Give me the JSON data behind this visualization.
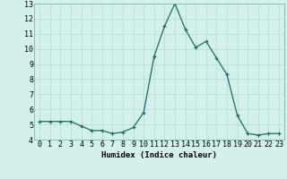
{
  "x": [
    0,
    1,
    2,
    3,
    4,
    5,
    6,
    7,
    8,
    9,
    10,
    11,
    12,
    13,
    14,
    15,
    16,
    17,
    18,
    19,
    20,
    21,
    22,
    23
  ],
  "y": [
    5.2,
    5.2,
    5.2,
    5.2,
    4.9,
    4.6,
    4.6,
    4.4,
    4.5,
    4.8,
    5.8,
    9.5,
    11.5,
    13.0,
    11.3,
    10.1,
    10.5,
    9.4,
    8.3,
    5.6,
    4.4,
    4.3,
    4.4,
    4.4
  ],
  "line_color": "#1a6e62",
  "marker": "P",
  "marker_size": 2.5,
  "bg_color": "#d4f0ec",
  "grid_color": "#b8ddd8",
  "xlabel": "Humidex (Indice chaleur)",
  "xlabel_fontsize": 6.5,
  "tick_fontsize": 6,
  "ylim": [
    4,
    13
  ],
  "xlim": [
    -0.5,
    23.5
  ],
  "yticks": [
    4,
    5,
    6,
    7,
    8,
    9,
    10,
    11,
    12,
    13
  ],
  "xticks": [
    0,
    1,
    2,
    3,
    4,
    5,
    6,
    7,
    8,
    9,
    10,
    11,
    12,
    13,
    14,
    15,
    16,
    17,
    18,
    19,
    20,
    21,
    22,
    23
  ]
}
